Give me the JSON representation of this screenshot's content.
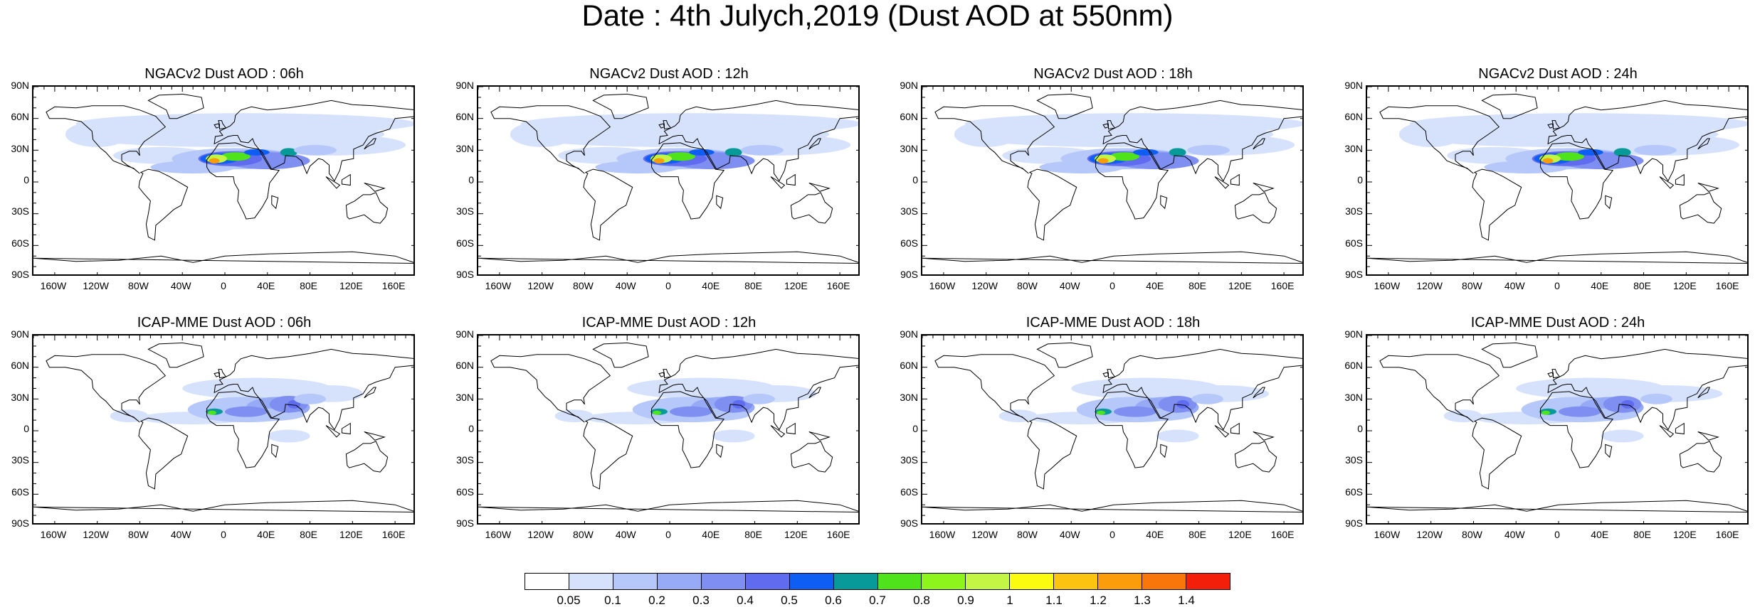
{
  "title": "Date : 4th Julych,2019 (Dust AOD at 550nm)",
  "lat_labels": [
    "90N",
    "60N",
    "30N",
    "0",
    "30S",
    "60S",
    "90S"
  ],
  "lon_labels": [
    "160W",
    "120W",
    "80W",
    "40W",
    "0",
    "40E",
    "80E",
    "120E",
    "160E"
  ],
  "panels": [
    {
      "title": "NGACv2 Dust AOD : 06h",
      "model": "NGACv2",
      "hour": "06h"
    },
    {
      "title": "NGACv2 Dust AOD : 12h",
      "model": "NGACv2",
      "hour": "12h"
    },
    {
      "title": "NGACv2 Dust AOD : 18h",
      "model": "NGACv2",
      "hour": "18h"
    },
    {
      "title": "NGACv2 Dust AOD : 24h",
      "model": "NGACv2",
      "hour": "24h"
    },
    {
      "title": "ICAP-MME Dust AOD : 06h",
      "model": "ICAP-MME",
      "hour": "06h"
    },
    {
      "title": "ICAP-MME Dust AOD : 12h",
      "model": "ICAP-MME",
      "hour": "12h"
    },
    {
      "title": "ICAP-MME Dust AOD : 18h",
      "model": "ICAP-MME",
      "hour": "18h"
    },
    {
      "title": "ICAP-MME Dust AOD : 24h",
      "model": "ICAP-MME",
      "hour": "24h"
    }
  ],
  "colorbar": {
    "labels": [
      "0.05",
      "0.1",
      "0.2",
      "0.3",
      "0.4",
      "0.5",
      "0.6",
      "0.7",
      "0.8",
      "0.9",
      "1",
      "1.1",
      "1.2",
      "1.3",
      "1.4"
    ],
    "colors": [
      "#ffffff",
      "#d6e2fb",
      "#b6c8f9",
      "#96aaf6",
      "#7f8ff1",
      "#5f6cf0",
      "#0f5ef3",
      "#089a98",
      "#4ee31a",
      "#8ef51c",
      "#c3f544",
      "#fbfb10",
      "#fbc410",
      "#fb9c0a",
      "#f9760a",
      "#f31f0b"
    ]
  }
}
